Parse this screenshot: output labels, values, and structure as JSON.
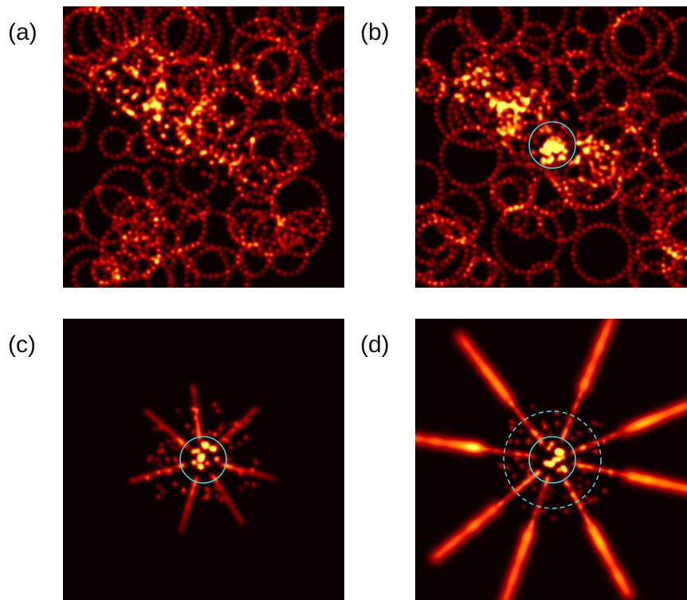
{
  "figure": {
    "panels": [
      {
        "id": "a",
        "label": "(a)",
        "pattern": "diffuse-speckle",
        "circles": []
      },
      {
        "id": "b",
        "label": "(b)",
        "pattern": "speckle-with-focus",
        "circles": [
          "solid"
        ]
      },
      {
        "id": "c",
        "label": "(c)",
        "pattern": "focused-spot",
        "circles": [
          "solid"
        ]
      },
      {
        "id": "d",
        "label": "(d)",
        "pattern": "focused-spot-with-rays",
        "circles": [
          "solid",
          "dashed"
        ]
      }
    ],
    "colors": {
      "background": "#0b0000",
      "circle": "#3fd6e0",
      "speckle_hot": "#ffe27a",
      "speckle_mid": "#d2300f"
    }
  }
}
